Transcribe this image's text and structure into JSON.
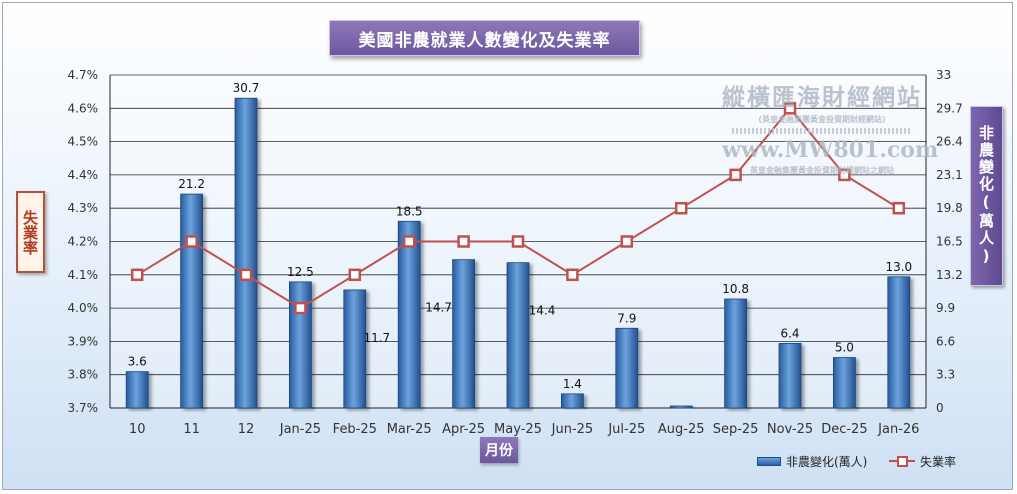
{
  "chart_data": {
    "type": "bar+line",
    "title": "美國非農就業人數變化及失業率",
    "xlabel": "月份",
    "ylabel_left": "失業率",
    "ylabel_right": "非農變化(萬人)",
    "categories": [
      "10",
      "11",
      "12",
      "Jan-25",
      "Feb-25",
      "Mar-25",
      "Apr-25",
      "May-25",
      "Jun-25",
      "Jul-25",
      "Aug-25",
      "Sep-25",
      "Nov-25",
      "Dec-25",
      "Jan-26"
    ],
    "series": [
      {
        "name": "非農變化(萬人)",
        "type": "bar",
        "axis": "right",
        "values": [
          3.6,
          21.2,
          30.7,
          12.5,
          11.7,
          18.5,
          14.7,
          14.4,
          1.4,
          7.9,
          0.2,
          10.8,
          6.4,
          5.0,
          13.0
        ],
        "labels": [
          "3.6",
          "21.2",
          "30.7",
          "12.5",
          "11.7",
          "18.5",
          "14.7",
          "14.4",
          "1.4",
          "7.9",
          "",
          "10.8",
          "6.4",
          "5.0",
          "13.0"
        ]
      },
      {
        "name": "失業率",
        "type": "line",
        "axis": "left",
        "values": [
          4.1,
          4.2,
          4.1,
          4.0,
          4.1,
          4.2,
          4.2,
          4.2,
          4.1,
          4.2,
          4.3,
          4.4,
          4.6,
          4.4,
          4.3
        ]
      }
    ],
    "left_axis": {
      "ylim": [
        3.7,
        4.7
      ],
      "ticks": [
        "4.7%",
        "4.6%",
        "4.5%",
        "4.4%",
        "4.3%",
        "4.2%",
        "4.1%",
        "4.0%",
        "3.9%",
        "3.8%",
        "3.7%"
      ]
    },
    "right_axis": {
      "ylim": [
        0,
        33
      ],
      "ticks": [
        "33",
        "29.7",
        "26.4",
        "23.1",
        "19.8",
        "16.5",
        "13.2",
        "9.9",
        "6.6",
        "3.3",
        "0"
      ]
    },
    "grid": true,
    "legend": "bottom-right",
    "colors": {
      "bar": "#3a6fb8",
      "line": "#c0504d",
      "title_bg": "#7a64aa"
    }
  },
  "watermark": {
    "name": "縱橫匯海財經網站",
    "tagline1": "(英皇金融集團黃金投資期財經網站)",
    "url": "www.MW801.com",
    "tagline2": "英皇金融集團黃金投資期財經網站之網站"
  }
}
